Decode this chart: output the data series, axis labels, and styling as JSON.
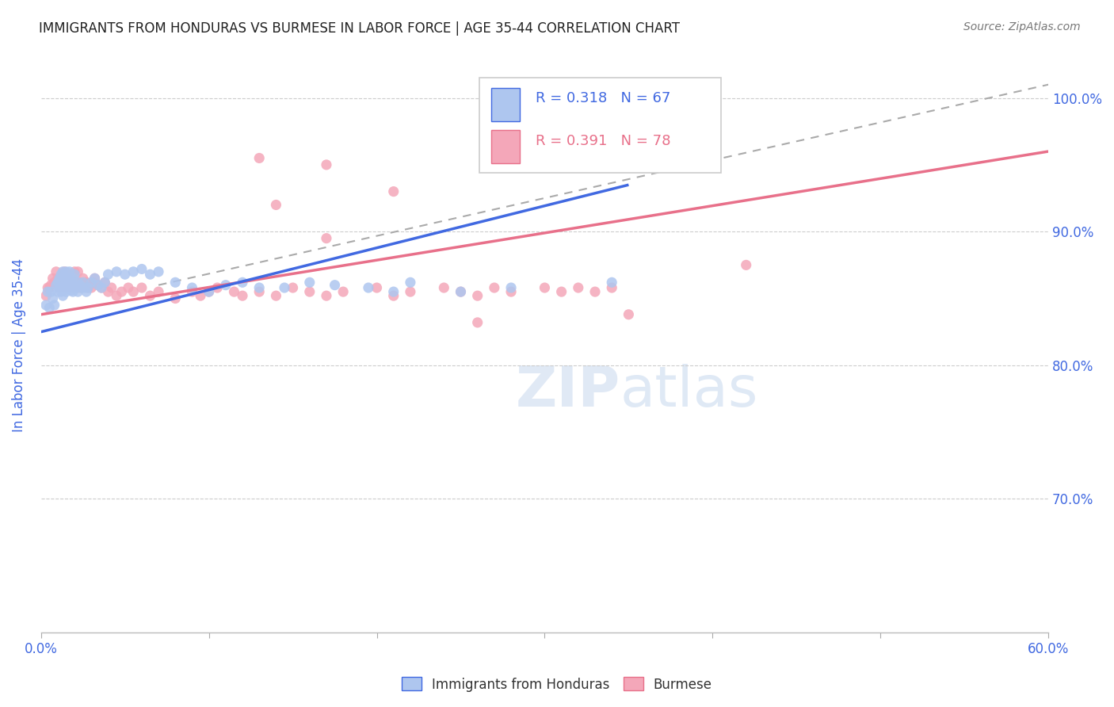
{
  "title": "IMMIGRANTS FROM HONDURAS VS BURMESE IN LABOR FORCE | AGE 35-44 CORRELATION CHART",
  "source": "Source: ZipAtlas.com",
  "ylabel": "In Labor Force | Age 35-44",
  "xlim": [
    0.0,
    0.6
  ],
  "ylim": [
    0.6,
    1.03
  ],
  "yticks": [
    0.7,
    0.8,
    0.9,
    1.0
  ],
  "xticks": [
    0.0,
    0.1,
    0.2,
    0.3,
    0.4,
    0.5,
    0.6
  ],
  "xtick_labels": [
    "0.0%",
    "",
    "",
    "",
    "",
    "",
    "60.0%"
  ],
  "ytick_labels": [
    "70.0%",
    "80.0%",
    "90.0%",
    "100.0%"
  ],
  "legend_blue_label": "Immigrants from Honduras",
  "legend_pink_label": "Burmese",
  "R_blue": 0.318,
  "N_blue": 67,
  "R_pink": 0.391,
  "N_pink": 78,
  "title_color": "#222222",
  "axis_label_color": "#4169e1",
  "tick_color": "#4169e1",
  "grid_color": "#cccccc",
  "blue_scatter_color": "#aec6ef",
  "pink_scatter_color": "#f4a7b9",
  "blue_line_color": "#4169e1",
  "pink_line_color": "#e8708a",
  "dashed_line_color": "#aaaaaa",
  "source_color": "#777777",
  "blue_scatter_x": [
    0.003,
    0.004,
    0.005,
    0.006,
    0.007,
    0.008,
    0.009,
    0.01,
    0.01,
    0.011,
    0.011,
    0.012,
    0.012,
    0.013,
    0.013,
    0.013,
    0.014,
    0.014,
    0.015,
    0.015,
    0.015,
    0.016,
    0.016,
    0.017,
    0.017,
    0.018,
    0.018,
    0.019,
    0.019,
    0.02,
    0.02,
    0.021,
    0.022,
    0.022,
    0.023,
    0.024,
    0.025,
    0.026,
    0.027,
    0.028,
    0.03,
    0.032,
    0.034,
    0.036,
    0.038,
    0.04,
    0.045,
    0.05,
    0.055,
    0.06,
    0.065,
    0.07,
    0.08,
    0.09,
    0.1,
    0.11,
    0.12,
    0.13,
    0.145,
    0.16,
    0.175,
    0.195,
    0.21,
    0.22,
    0.25,
    0.28,
    0.34
  ],
  "blue_scatter_y": [
    0.845,
    0.855,
    0.843,
    0.855,
    0.85,
    0.845,
    0.86,
    0.855,
    0.862,
    0.858,
    0.865,
    0.855,
    0.868,
    0.852,
    0.858,
    0.87,
    0.858,
    0.865,
    0.855,
    0.862,
    0.87,
    0.858,
    0.865,
    0.862,
    0.87,
    0.862,
    0.856,
    0.855,
    0.865,
    0.858,
    0.868,
    0.858,
    0.855,
    0.862,
    0.86,
    0.858,
    0.862,
    0.858,
    0.855,
    0.858,
    0.862,
    0.865,
    0.86,
    0.858,
    0.862,
    0.868,
    0.87,
    0.868,
    0.87,
    0.872,
    0.868,
    0.87,
    0.862,
    0.858,
    0.855,
    0.86,
    0.862,
    0.858,
    0.858,
    0.862,
    0.86,
    0.858,
    0.855,
    0.862,
    0.855,
    0.858,
    0.862
  ],
  "pink_scatter_x": [
    0.003,
    0.004,
    0.005,
    0.006,
    0.007,
    0.008,
    0.009,
    0.01,
    0.011,
    0.012,
    0.013,
    0.014,
    0.015,
    0.015,
    0.016,
    0.017,
    0.018,
    0.019,
    0.02,
    0.02,
    0.021,
    0.022,
    0.022,
    0.023,
    0.024,
    0.025,
    0.026,
    0.027,
    0.028,
    0.03,
    0.031,
    0.032,
    0.034,
    0.036,
    0.038,
    0.04,
    0.042,
    0.045,
    0.048,
    0.052,
    0.055,
    0.06,
    0.065,
    0.07,
    0.08,
    0.09,
    0.095,
    0.1,
    0.105,
    0.115,
    0.12,
    0.13,
    0.14,
    0.15,
    0.16,
    0.17,
    0.18,
    0.2,
    0.21,
    0.22,
    0.24,
    0.25,
    0.26,
    0.27,
    0.28,
    0.3,
    0.31,
    0.32,
    0.33,
    0.34,
    0.21,
    0.14,
    0.42,
    0.17,
    0.13,
    0.17,
    0.26,
    0.35
  ],
  "pink_scatter_y": [
    0.852,
    0.858,
    0.858,
    0.86,
    0.865,
    0.862,
    0.87,
    0.865,
    0.858,
    0.865,
    0.862,
    0.87,
    0.865,
    0.858,
    0.862,
    0.865,
    0.858,
    0.862,
    0.858,
    0.87,
    0.862,
    0.858,
    0.87,
    0.862,
    0.858,
    0.865,
    0.86,
    0.862,
    0.858,
    0.858,
    0.862,
    0.865,
    0.86,
    0.858,
    0.862,
    0.855,
    0.858,
    0.852,
    0.855,
    0.858,
    0.855,
    0.858,
    0.852,
    0.855,
    0.85,
    0.855,
    0.852,
    0.855,
    0.858,
    0.855,
    0.852,
    0.855,
    0.852,
    0.858,
    0.855,
    0.852,
    0.855,
    0.858,
    0.852,
    0.855,
    0.858,
    0.855,
    0.852,
    0.858,
    0.855,
    0.858,
    0.855,
    0.858,
    0.855,
    0.858,
    0.93,
    0.92,
    0.875,
    0.95,
    0.955,
    0.895,
    0.832,
    0.838
  ],
  "blue_line_x0": 0.0,
  "blue_line_y0": 0.825,
  "blue_line_x1": 0.35,
  "blue_line_y1": 0.935,
  "pink_line_x0": 0.0,
  "pink_line_y0": 0.838,
  "pink_line_x1": 0.6,
  "pink_line_y1": 0.96,
  "dash_line_x0": 0.07,
  "dash_line_y0": 0.86,
  "dash_line_x1": 0.6,
  "dash_line_y1": 1.01
}
